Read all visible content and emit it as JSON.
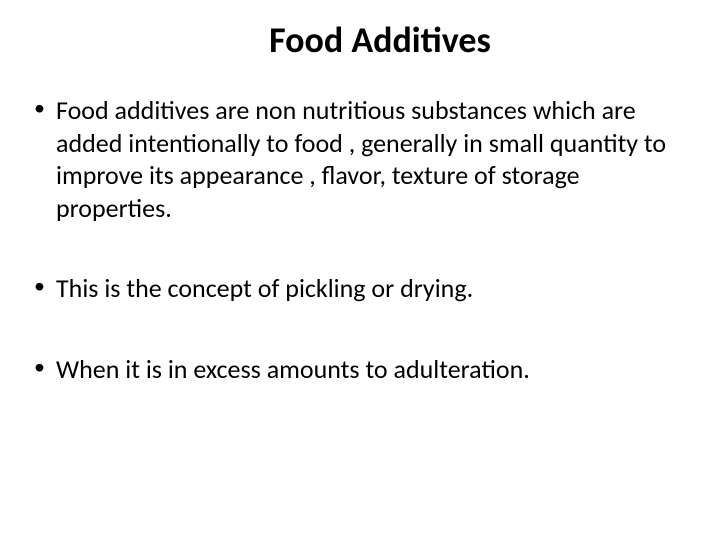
{
  "slide": {
    "title": "Food Additives",
    "title_fontsize": 36,
    "body_fontsize": 26,
    "text_color": "#000000",
    "background_color": "#ffffff",
    "bullets": [
      "Food additives are non nutritious substances which are added intentionally to food , generally  in small quantity to improve its appearance , flavor, texture of storage properties.",
      "This is the concept of  pickling or drying.",
      "When it is in excess  amounts to adulteration."
    ]
  }
}
